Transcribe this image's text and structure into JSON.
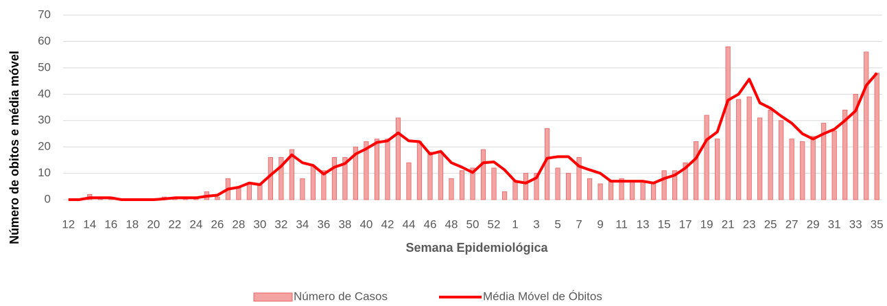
{
  "chart_data": {
    "type": "bar_line",
    "x_label": "Semana Epidemiológica",
    "y_label": "Número de obitos e média móvel",
    "categories": [
      "12",
      null,
      "14",
      null,
      "16",
      null,
      "18",
      null,
      "20",
      null,
      "22",
      null,
      "24",
      null,
      "26",
      null,
      "28",
      null,
      "30",
      null,
      "32",
      null,
      "34",
      null,
      "36",
      null,
      "38",
      null,
      "40",
      null,
      "42",
      null,
      "44",
      null,
      "46",
      null,
      "48",
      null,
      "50",
      null,
      "52",
      null,
      "1",
      null,
      "3",
      null,
      "5",
      null,
      "7",
      null,
      "9",
      null,
      "11",
      null,
      "13",
      null,
      "15",
      null,
      "17",
      null,
      "19",
      null,
      "21",
      null,
      "23",
      null,
      "25",
      null,
      "27",
      null,
      "29",
      null,
      "31",
      null,
      "33",
      null,
      "35"
    ],
    "series": [
      {
        "name": "Número de Casos",
        "kind": "bar",
        "color": "#f4a3a3",
        "values": [
          0,
          0,
          2,
          1,
          1,
          0,
          0,
          0,
          0,
          1,
          1,
          1,
          1,
          3,
          1,
          8,
          5,
          6,
          6,
          16,
          16,
          19,
          8,
          13,
          11,
          16,
          16,
          20,
          22,
          23,
          23,
          31,
          14,
          22,
          18,
          18,
          8,
          11,
          12,
          19,
          12,
          3,
          7,
          10,
          10,
          27,
          12,
          10,
          16,
          8,
          6,
          7,
          8,
          7,
          7,
          6,
          11,
          11,
          14,
          22,
          32,
          23,
          58,
          38,
          39,
          31,
          34,
          30,
          23,
          22,
          24,
          29,
          26,
          34,
          40,
          56,
          48
        ]
      },
      {
        "name": "Média Móvel de Óbitos",
        "kind": "line",
        "color": "#ff0000",
        "values": [
          0,
          0,
          0.7,
          0.7,
          0.7,
          0,
          0,
          0,
          0,
          0.3,
          0.7,
          0.7,
          0.7,
          1.3,
          1.7,
          4,
          4.7,
          6.3,
          5.7,
          9.3,
          12.7,
          17,
          14,
          13,
          9.7,
          12.3,
          13.7,
          17.3,
          19.3,
          21.7,
          22.3,
          25.3,
          22.3,
          22,
          17.3,
          18.3,
          14,
          12.3,
          10.3,
          14,
          14.3,
          11.3,
          7,
          6.3,
          8.3,
          15.7,
          16.3,
          16.3,
          12.7,
          11.3,
          10,
          7,
          7,
          7,
          7,
          6.3,
          8,
          9.3,
          12,
          15.7,
          22.7,
          25.7,
          37.7,
          40,
          45.7,
          36.7,
          34.7,
          31.7,
          29,
          25,
          23,
          25,
          26.7,
          30,
          33.7,
          43.3,
          48
        ]
      }
    ],
    "ylim": [
      0,
      70
    ],
    "yticks": [
      0,
      10,
      20,
      30,
      40,
      50,
      60,
      70
    ],
    "grid": true,
    "legend": "bottom"
  }
}
